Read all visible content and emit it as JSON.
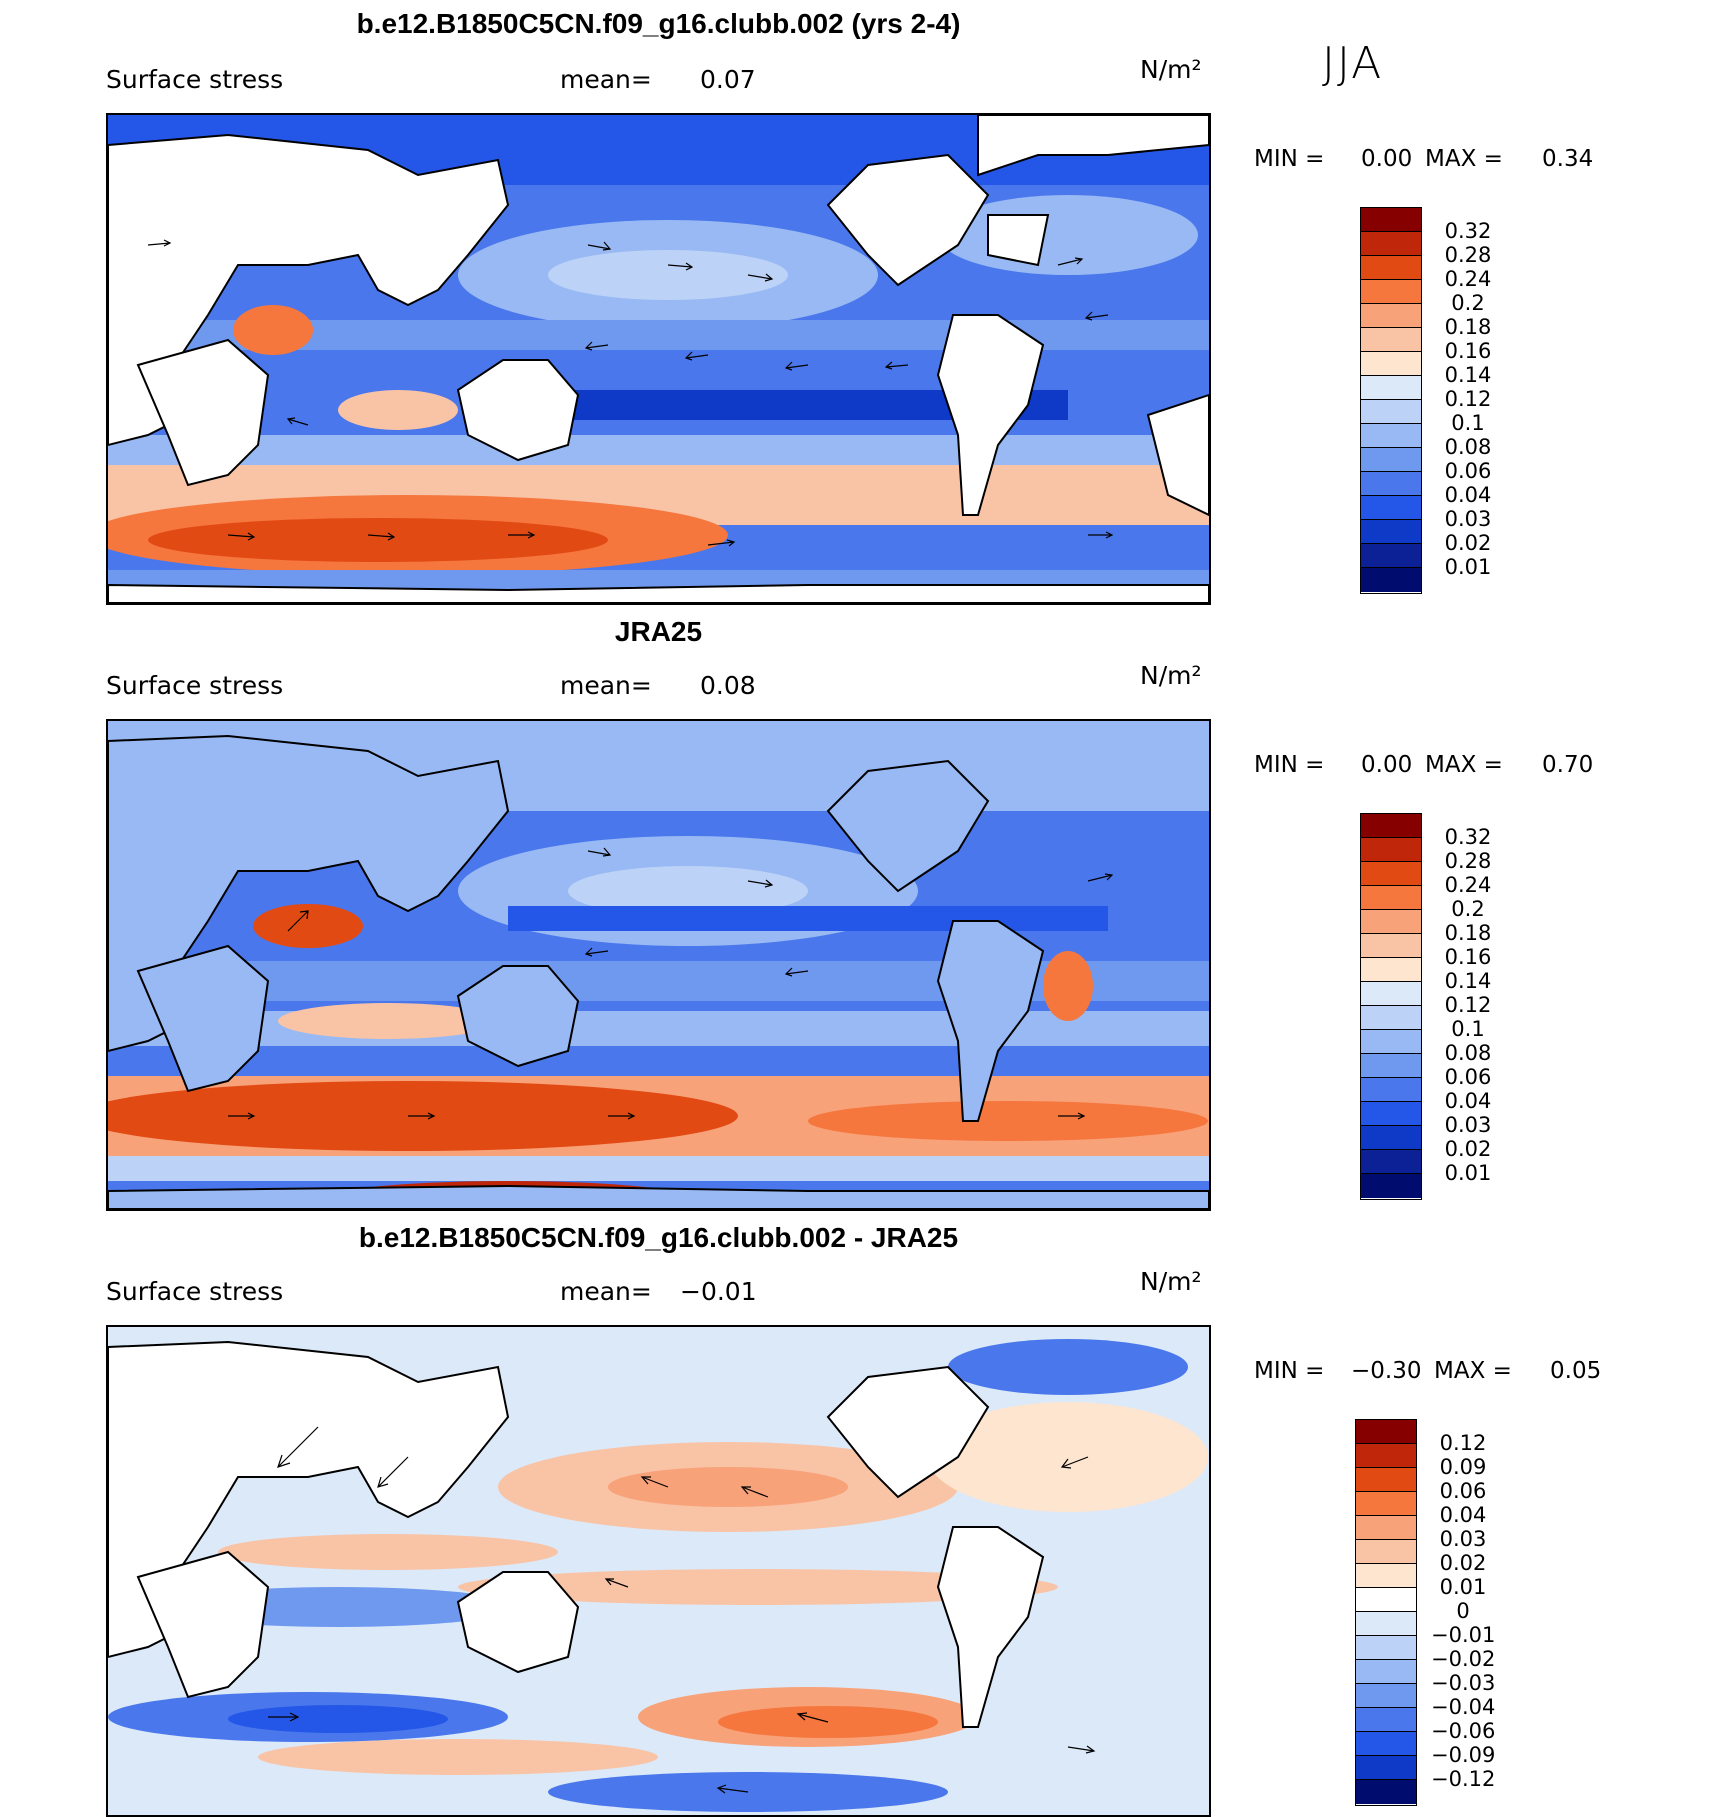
{
  "season": "JJA",
  "panels": [
    {
      "id": "model",
      "title": "b.e12.B1850C5CN.f09_g16.clubb.002 (yrs 2-4)",
      "variable": "Surface stress",
      "mean_label": "mean=",
      "mean_value": "0.07",
      "units": "N/m²",
      "min_label": "MIN =",
      "min_value": "0.00",
      "max_label": "MAX =",
      "max_value": "0.34",
      "colorbar_levels": [
        "0.32",
        "0.28",
        "0.24",
        "0.2",
        "0.18",
        "0.16",
        "0.14",
        "0.12",
        "0.1",
        "0.08",
        "0.06",
        "0.04",
        "0.03",
        "0.02",
        "0.01"
      ],
      "colorbar_colors": [
        "#860000",
        "#c0260a",
        "#e24a14",
        "#f5773d",
        "#f8a27a",
        "#f9c3a6",
        "#fde5cf",
        "#dce9f8",
        "#bcd3f7",
        "#98b9f3",
        "#6f99ef",
        "#4a78ec",
        "#2457e8",
        "#0f39c7",
        "#0b2195",
        "#000d6e"
      ]
    },
    {
      "id": "obs",
      "title": "JRA25",
      "variable": "Surface stress",
      "mean_label": "mean=",
      "mean_value": "0.08",
      "units": "N/m²",
      "min_label": "MIN =",
      "min_value": "0.00",
      "max_label": "MAX =",
      "max_value": "0.70",
      "colorbar_levels": [
        "0.32",
        "0.28",
        "0.24",
        "0.2",
        "0.18",
        "0.16",
        "0.14",
        "0.12",
        "0.1",
        "0.08",
        "0.06",
        "0.04",
        "0.03",
        "0.02",
        "0.01"
      ],
      "colorbar_colors": [
        "#860000",
        "#c0260a",
        "#e24a14",
        "#f5773d",
        "#f8a27a",
        "#f9c3a6",
        "#fde5cf",
        "#dce9f8",
        "#bcd3f7",
        "#98b9f3",
        "#6f99ef",
        "#4a78ec",
        "#2457e8",
        "#0f39c7",
        "#0b2195",
        "#000d6e"
      ]
    },
    {
      "id": "diff",
      "title": "b.e12.B1850C5CN.f09_g16.clubb.002 - JRA25",
      "variable": "Surface stress",
      "mean_label": "mean=",
      "mean_value": "−0.01",
      "units": "N/m²",
      "min_label": "MIN =",
      "min_value": "−0.30",
      "max_label": "MAX =",
      "max_value": "0.05",
      "colorbar_levels": [
        "0.12",
        "0.09",
        "0.06",
        "0.04",
        "0.03",
        "0.02",
        "0.01",
        "0",
        "−0.01",
        "−0.02",
        "−0.03",
        "−0.04",
        "−0.06",
        "−0.09",
        "−0.12"
      ],
      "colorbar_colors": [
        "#860000",
        "#c0260a",
        "#e24a14",
        "#f5773d",
        "#f8a27a",
        "#f9c3a6",
        "#fde5cf",
        "#ffffff",
        "#dce9f8",
        "#bcd3f7",
        "#98b9f3",
        "#6f99ef",
        "#4a78ec",
        "#2457e8",
        "#0f39c7",
        "#000d6e"
      ]
    }
  ]
}
